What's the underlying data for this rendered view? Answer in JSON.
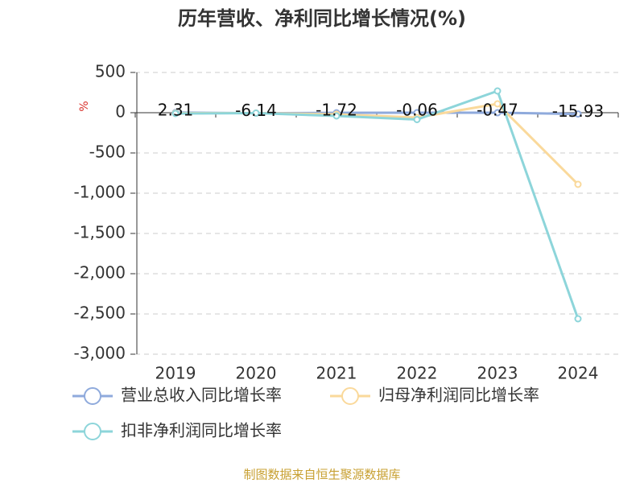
{
  "chart_data": {
    "type": "line",
    "title": "历年营收、净利同比增长情况(%)",
    "y_label": "%",
    "source": "制图数据来自恒生聚源数据库",
    "categories": [
      "2019",
      "2020",
      "2021",
      "2022",
      "2023",
      "2024"
    ],
    "series": [
      {
        "name": "营业总收入同比增长率",
        "color": "#8faadc",
        "values": [
          2.31,
          -6.14,
          -1.72,
          -0.06,
          -0.47,
          -15.93
        ]
      },
      {
        "name": "归母净利润同比增长率",
        "color": "#fad99b",
        "values": [
          -5,
          -5,
          -20,
          -60,
          110,
          -890
        ]
      },
      {
        "name": "扣非净利润同比增长率",
        "color": "#8dd5da",
        "values": [
          -10,
          -5,
          -40,
          -85,
          270,
          -2560
        ]
      }
    ],
    "ylim": [
      -3000,
      500
    ],
    "yticks": [
      500,
      0,
      -500,
      {
        "value": -1000,
        "label": "-1,000"
      },
      {
        "value": -1500,
        "label": "-1,500"
      },
      {
        "value": -2000,
        "label": "-2,000"
      },
      {
        "value": -2500,
        "label": "-2,500"
      },
      {
        "value": -3000,
        "label": "-3,000"
      }
    ],
    "grid": true,
    "data_labels_series": 0
  }
}
